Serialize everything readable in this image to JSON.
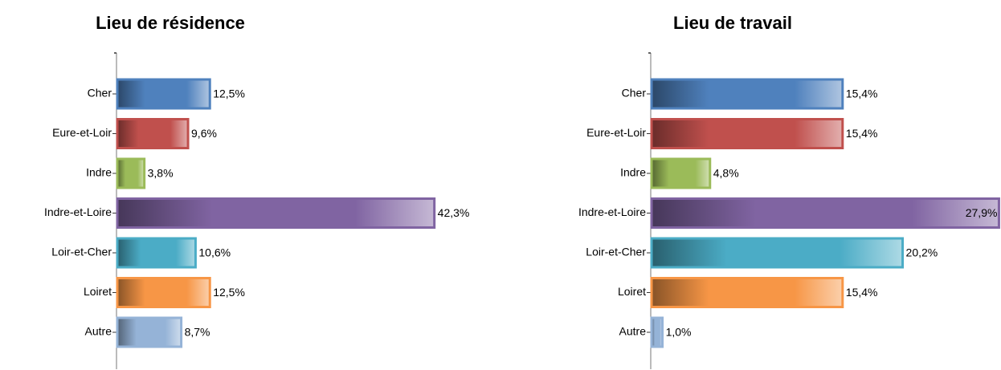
{
  "chart_data": [
    {
      "type": "bar",
      "title": "Lieu de résidence",
      "categories": [
        "Cher",
        "Eure-et-Loir",
        "Indre",
        "Indre-et-Loire",
        "Loir-et-Cher",
        "Loiret",
        "Autre"
      ],
      "values": [
        12.5,
        9.6,
        3.8,
        42.3,
        10.6,
        12.5,
        8.7
      ],
      "value_labels": [
        "12,5%",
        "9,6%",
        "3,8%",
        "42,3%",
        "10,6%",
        "12,5%",
        "8,7%"
      ],
      "colors": [
        "#4f81bd",
        "#c0504d",
        "#9bbb59",
        "#8064a2",
        "#4bacc6",
        "#f79646",
        "#95b3d7"
      ],
      "xlim": [
        0,
        45
      ]
    },
    {
      "type": "bar",
      "title": "Lieu de travail",
      "categories": [
        "Cher",
        "Eure-et-Loir",
        "Indre",
        "Indre-et-Loire",
        "Loir-et-Cher",
        "Loiret",
        "Autre"
      ],
      "values": [
        15.4,
        15.4,
        4.8,
        27.9,
        20.2,
        15.4,
        1.0
      ],
      "value_labels": [
        "15,4%",
        "15,4%",
        "4,8%",
        "27,9%",
        "20,2%",
        "15,4%",
        "1,0%"
      ],
      "colors": [
        "#4f81bd",
        "#c0504d",
        "#9bbb59",
        "#8064a2",
        "#4bacc6",
        "#f79646",
        "#95b3d7"
      ],
      "xlim": [
        0,
        28
      ]
    }
  ]
}
